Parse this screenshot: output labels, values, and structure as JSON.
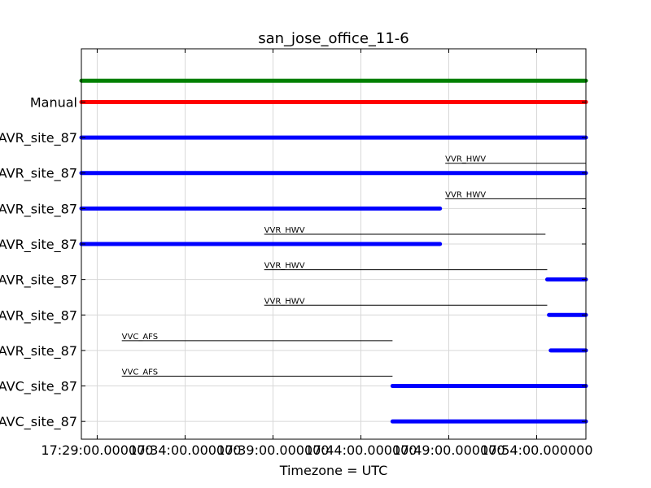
{
  "chart_data": {
    "type": "scatter",
    "title": "san_jose_office_11-6",
    "xlabel": "Timezone = UTC",
    "ylabel": "",
    "x_ticks": [
      {
        "minute": 0,
        "label": "17:29:00.000000"
      },
      {
        "minute": 5,
        "label": "17:34:00.000000"
      },
      {
        "minute": 10,
        "label": "17:39:00.000000"
      },
      {
        "minute": 15,
        "label": "17:44:00.000000"
      },
      {
        "minute": 20,
        "label": "17:49:00.000000"
      },
      {
        "minute": 25,
        "label": "17:54:00.000000"
      }
    ],
    "xlim_minutes": [
      -0.9,
      27.8
    ],
    "ylim": [
      -0.5,
      10.5
    ],
    "grid": true,
    "y_tick_labels": [
      {
        "row": 9,
        "label": "Manual"
      },
      {
        "row": 8,
        "label": "AVR_site_87"
      },
      {
        "row": 7,
        "label": "AVR_site_87"
      },
      {
        "row": 6,
        "label": "AVR_site_87"
      },
      {
        "row": 5,
        "label": "AVR_site_87"
      },
      {
        "row": 4,
        "label": "AVR_site_87"
      },
      {
        "row": 3,
        "label": "AVR_site_87"
      },
      {
        "row": 2,
        "label": "AVR_site_87"
      },
      {
        "row": 1,
        "label": "AVC_site_87"
      },
      {
        "row": 0,
        "label": "AVC_site_87"
      }
    ],
    "series": [
      {
        "row": 9.6,
        "color": "#008000",
        "x_start": -0.9,
        "x_end": 27.8
      },
      {
        "row": 9.0,
        "color": "#ff0000",
        "x_start": -0.9,
        "x_end": 27.8
      },
      {
        "row": 8.0,
        "color": "#0000ff",
        "x_start": -0.9,
        "x_end": 27.8
      },
      {
        "row": 7.0,
        "color": "#0000ff",
        "x_start": -0.9,
        "x_end": 27.8
      },
      {
        "row": 6.0,
        "color": "#0000ff",
        "x_start": -0.9,
        "x_end": 19.5
      },
      {
        "row": 5.0,
        "color": "#0000ff",
        "x_start": -0.9,
        "x_end": 19.5
      },
      {
        "row": 4.0,
        "color": "#0000ff",
        "x_start": 25.6,
        "x_end": 27.8
      },
      {
        "row": 3.0,
        "color": "#0000ff",
        "x_start": 25.7,
        "x_end": 27.8
      },
      {
        "row": 2.0,
        "color": "#0000ff",
        "x_start": 25.8,
        "x_end": 27.8
      },
      {
        "row": 1.0,
        "color": "#0000ff",
        "x_start": 16.8,
        "x_end": 27.8
      },
      {
        "row": 0.0,
        "color": "#0000ff",
        "x_start": 16.8,
        "x_end": 27.8
      }
    ],
    "annotations": [
      {
        "label": "VVR_HWV",
        "row": 7,
        "x_start": 19.8,
        "x_end": 27.8
      },
      {
        "label": "VVR_HWV",
        "row": 6,
        "x_start": 19.8,
        "x_end": 27.8
      },
      {
        "label": "VVR_HWV",
        "row": 5,
        "x_start": 9.5,
        "x_end": 25.5
      },
      {
        "label": "VVR_HWV",
        "row": 4,
        "x_start": 9.5,
        "x_end": 25.6
      },
      {
        "label": "VVR_HWV",
        "row": 3,
        "x_start": 9.5,
        "x_end": 25.6
      },
      {
        "label": "VVC_AFS",
        "row": 2,
        "x_start": 1.4,
        "x_end": 16.8
      },
      {
        "label": "VVC_AFS",
        "row": 1,
        "x_start": 1.4,
        "x_end": 16.8
      }
    ]
  }
}
